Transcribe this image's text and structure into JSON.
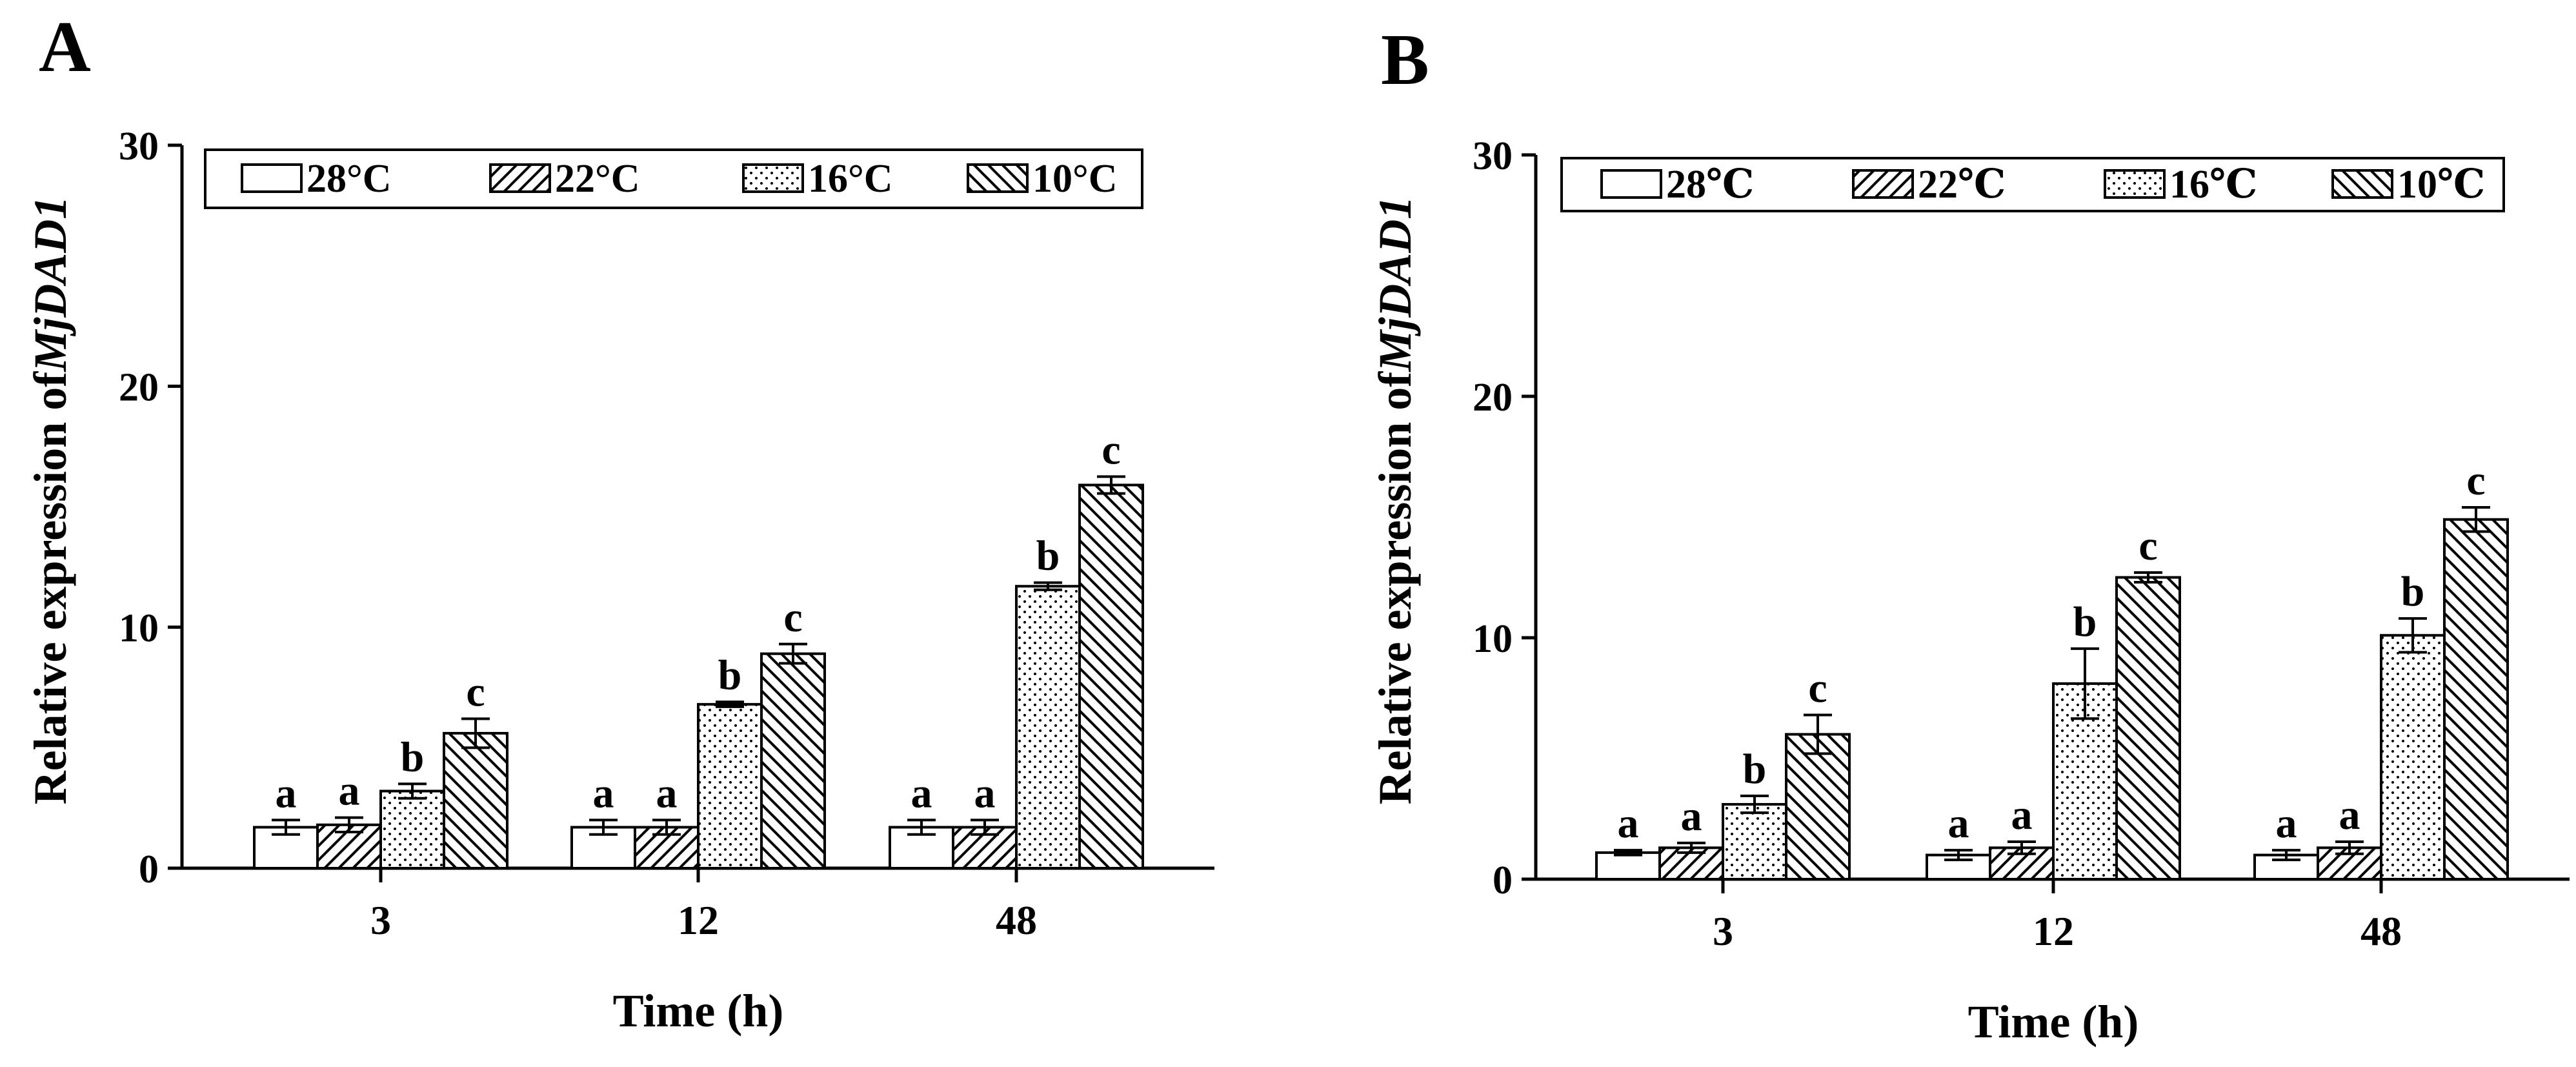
{
  "panels": [
    {
      "label": "A",
      "ylabel_prefix": "Relative expression of",
      "ylabel_gene": "MjDAD1",
      "xlabel": "Time (h)",
      "legend": [
        "28°C",
        "22°C",
        "16°C",
        "10°C"
      ],
      "yticks": [
        "0",
        "10",
        "20",
        "30"
      ],
      "categories": [
        "3",
        "12",
        "48"
      ]
    },
    {
      "label": "B",
      "ylabel_prefix": "Relative expression of",
      "ylabel_gene": "MjDAD1",
      "xlabel": "Time (h)",
      "legend": [
        "28℃",
        "22℃",
        "16℃",
        "10℃"
      ],
      "yticks": [
        "0",
        "10",
        "20",
        "30"
      ],
      "categories": [
        "3",
        "12",
        "48"
      ]
    }
  ],
  "chart_data": [
    {
      "type": "bar",
      "panel": "A",
      "title": "",
      "xlabel": "Time (h)",
      "ylabel": "Relative expression of MjDAD1",
      "ylim": [
        0,
        30
      ],
      "categories": [
        "3",
        "12",
        "48"
      ],
      "series": [
        {
          "name": "28°C",
          "pattern": "blank",
          "values": [
            1.7,
            1.7,
            1.7
          ],
          "errors": [
            0.3,
            0.3,
            0.3
          ],
          "letters": [
            "a",
            "a",
            "a"
          ]
        },
        {
          "name": "22°C",
          "pattern": "hatch-right",
          "values": [
            1.8,
            1.7,
            1.7
          ],
          "errors": [
            0.3,
            0.3,
            0.3
          ],
          "letters": [
            "a",
            "a",
            "a"
          ]
        },
        {
          "name": "16°C",
          "pattern": "dots",
          "values": [
            3.2,
            6.8,
            11.7
          ],
          "errors": [
            0.3,
            0.1,
            0.15
          ],
          "letters": [
            "b",
            "b",
            "b"
          ]
        },
        {
          "name": "10°C",
          "pattern": "hatch-left",
          "values": [
            5.6,
            8.9,
            15.9
          ],
          "errors": [
            0.6,
            0.4,
            0.35
          ],
          "letters": [
            "c",
            "c",
            "c"
          ]
        }
      ]
    },
    {
      "type": "bar",
      "panel": "B",
      "title": "",
      "xlabel": "Time (h)",
      "ylabel": "Relative expression of MjDAD1",
      "ylim": [
        0,
        30
      ],
      "categories": [
        "3",
        "12",
        "48"
      ],
      "series": [
        {
          "name": "28℃",
          "pattern": "blank",
          "values": [
            1.1,
            1.0,
            1.0
          ],
          "errors": [
            0.1,
            0.2,
            0.2
          ],
          "letters": [
            "a",
            "a",
            "a"
          ]
        },
        {
          "name": "22℃",
          "pattern": "hatch-right",
          "values": [
            1.3,
            1.3,
            1.3
          ],
          "errors": [
            0.2,
            0.25,
            0.25
          ],
          "letters": [
            "a",
            "a",
            "a"
          ]
        },
        {
          "name": "16℃",
          "pattern": "dots",
          "values": [
            3.1,
            8.1,
            10.1
          ],
          "errors": [
            0.35,
            1.45,
            0.7
          ],
          "letters": [
            "b",
            "b",
            "b"
          ]
        },
        {
          "name": "10℃",
          "pattern": "hatch-left",
          "values": [
            6.0,
            12.5,
            14.9
          ],
          "errors": [
            0.8,
            0.2,
            0.5
          ],
          "letters": [
            "c",
            "c",
            "c"
          ]
        }
      ]
    }
  ]
}
